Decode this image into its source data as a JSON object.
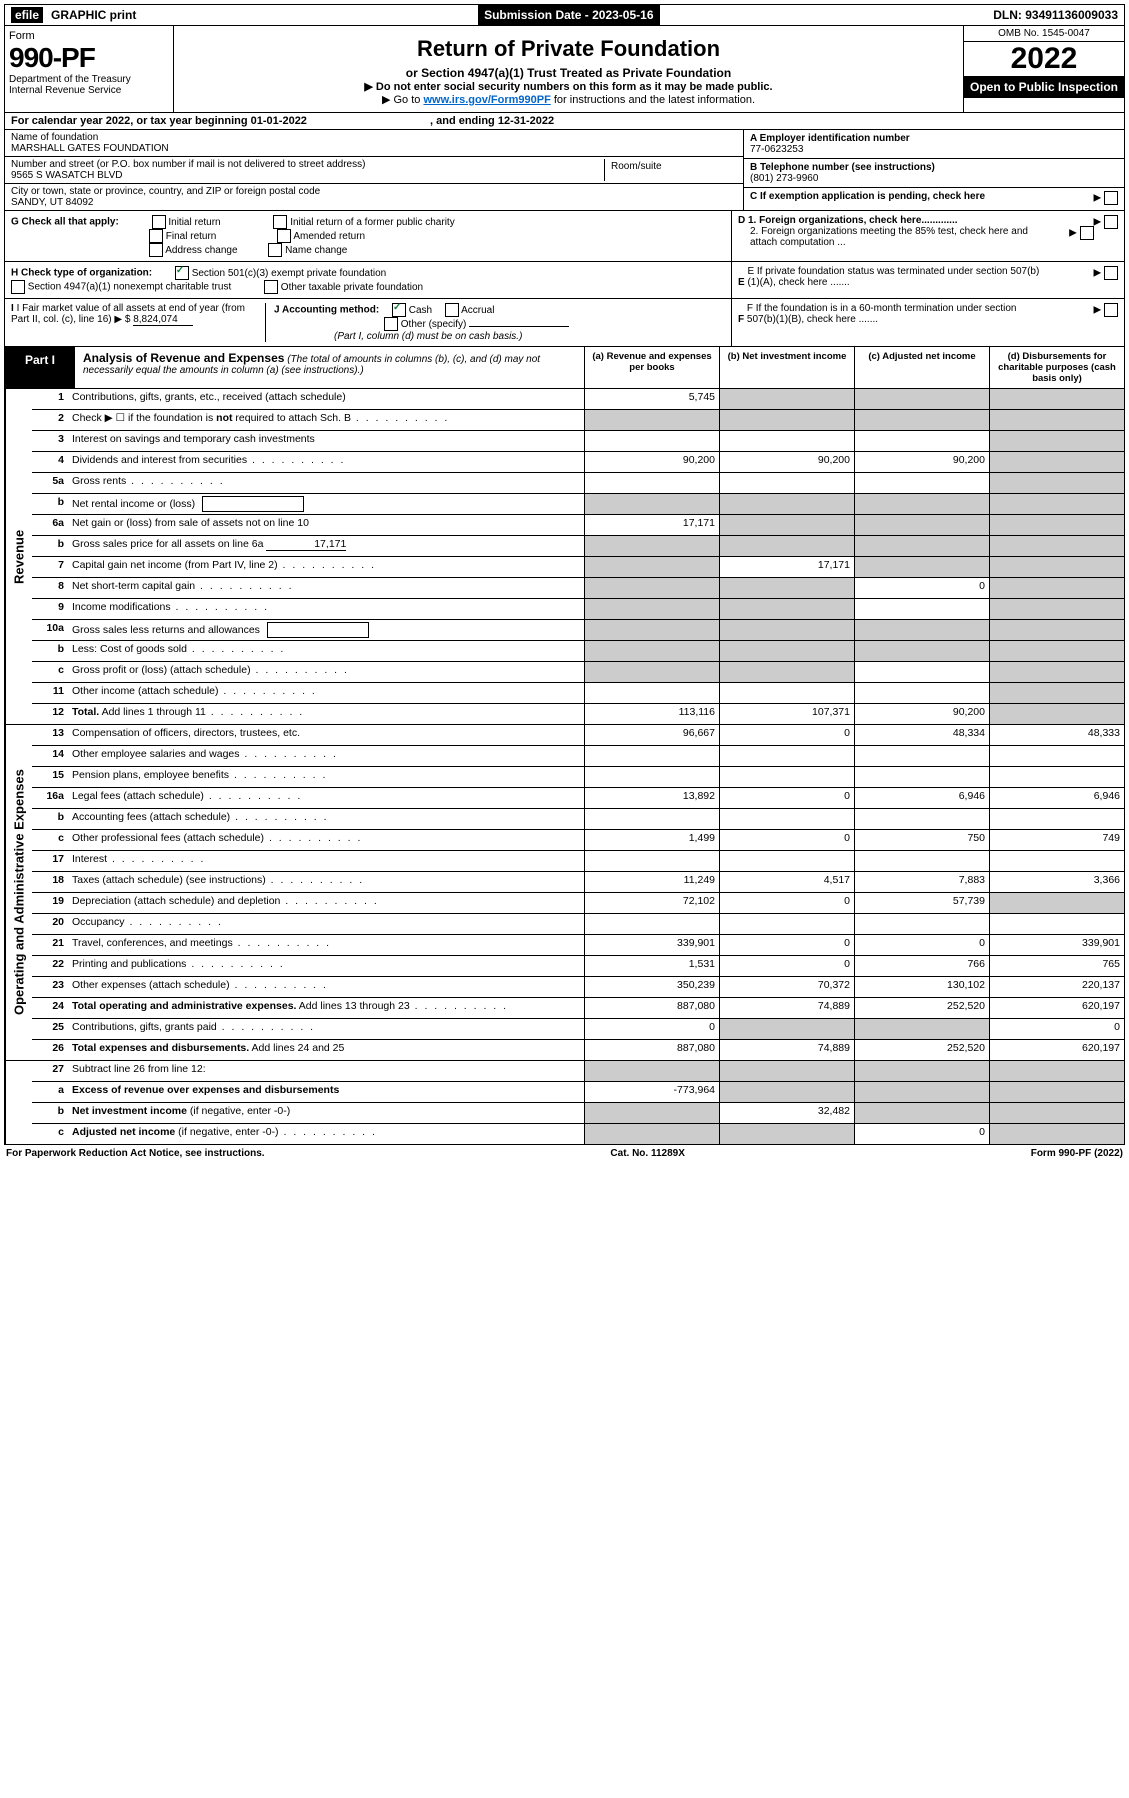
{
  "top": {
    "efile_prefix": "efile",
    "efile_label": "GRAPHIC print",
    "submission_label": "Submission Date - 2023-05-16",
    "dln": "DLN: 93491136009033"
  },
  "header": {
    "form_label": "Form",
    "form_number": "990-PF",
    "dept1": "Department of the Treasury",
    "dept2": "Internal Revenue Service",
    "title": "Return of Private Foundation",
    "subtitle": "or Section 4947(a)(1) Trust Treated as Private Foundation",
    "note1": "▶ Do not enter social security numbers on this form as it may be made public.",
    "note2_pre": "▶ Go to ",
    "note2_link": "www.irs.gov/Form990PF",
    "note2_post": " for instructions and the latest information.",
    "omb": "OMB No. 1545-0047",
    "year": "2022",
    "open_public": "Open to Public Inspection"
  },
  "cal": {
    "text_pre": "For calendar year 2022, or tax year beginning ",
    "begin": "01-01-2022",
    "mid": ", and ending ",
    "end": "12-31-2022"
  },
  "identity": {
    "name_label": "Name of foundation",
    "name": "MARSHALL GATES FOUNDATION",
    "addr_label": "Number and street (or P.O. box number if mail is not delivered to street address)",
    "addr": "9565 S WASATCH BLVD",
    "room_label": "Room/suite",
    "city_label": "City or town, state or province, country, and ZIP or foreign postal code",
    "city": "SANDY, UT  84092"
  },
  "right_box": {
    "a_label": "A Employer identification number",
    "a_val": "77-0623253",
    "b_label": "B Telephone number (see instructions)",
    "b_val": "(801) 273-9960",
    "c_label": "C If exemption application is pending, check here",
    "d1_label": "D 1. Foreign organizations, check here.............",
    "d2_label": "2. Foreign organizations meeting the 85% test, check here and attach computation ...",
    "e_label": "E If private foundation status was terminated under section 507(b)(1)(A), check here .......",
    "f_label": "F If the foundation is in a 60-month termination under section 507(b)(1)(B), check here .......",
    "arrow": "▶"
  },
  "checks": {
    "g_label": "G Check all that apply:",
    "g_opts": [
      "Initial return",
      "Final return",
      "Address change",
      "Initial return of a former public charity",
      "Amended return",
      "Name change"
    ],
    "h_label": "H Check type of organization:",
    "h_opt1": "Section 501(c)(3) exempt private foundation",
    "h_opt2": "Section 4947(a)(1) nonexempt charitable trust",
    "h_opt3": "Other taxable private foundation",
    "i_label": "I Fair market value of all assets at end of year (from Part II, col. (c), line 16)",
    "i_val": "8,824,074",
    "j_label": "J Accounting method:",
    "j_opt1": "Cash",
    "j_opt2": "Accrual",
    "j_other": "Other (specify)",
    "j_note": "(Part I, column (d) must be on cash basis.)"
  },
  "part1": {
    "label": "Part I",
    "title": "Analysis of Revenue and Expenses",
    "title_note": "(The total of amounts in columns (b), (c), and (d) may not necessarily equal the amounts in column (a) (see instructions).)",
    "col_a": "(a) Revenue and expenses per books",
    "col_b": "(b) Net investment income",
    "col_c": "(c) Adjusted net income",
    "col_d": "(d) Disbursements for charitable purposes (cash basis only)"
  },
  "sections": {
    "revenue": "Revenue",
    "expenses": "Operating and Administrative Expenses"
  },
  "lines": [
    {
      "n": "1",
      "d": "Contributions, gifts, grants, etc., received (attach schedule)",
      "a": "5,745",
      "b": "g",
      "c": "g",
      "dd": "g"
    },
    {
      "n": "2",
      "d": "Check ▶ ☐ if the foundation is <b>not</b> required to attach Sch. B",
      "dots": 1,
      "a": "g",
      "b": "g",
      "c": "g",
      "dd": "g"
    },
    {
      "n": "3",
      "d": "Interest on savings and temporary cash investments",
      "a": "",
      "b": "",
      "c": "",
      "dd": "g"
    },
    {
      "n": "4",
      "d": "Dividends and interest from securities",
      "dots": 1,
      "a": "90,200",
      "b": "90,200",
      "c": "90,200",
      "dd": "g"
    },
    {
      "n": "5a",
      "d": "Gross rents",
      "dots": 1,
      "a": "",
      "b": "",
      "c": "",
      "dd": "g"
    },
    {
      "n": "b",
      "d": "Net rental income or (loss) <span class='inline-box'></span>",
      "a": "g",
      "b": "g",
      "c": "g",
      "dd": "g"
    },
    {
      "n": "6a",
      "d": "Net gain or (loss) from sale of assets not on line 10",
      "a": "17,171",
      "b": "g",
      "c": "g",
      "dd": "g"
    },
    {
      "n": "b",
      "d": "Gross sales price for all assets on line 6a <span class='underline' style='min-width:80px;text-align:right'>17,171</span>",
      "a": "g",
      "b": "g",
      "c": "g",
      "dd": "g"
    },
    {
      "n": "7",
      "d": "Capital gain net income (from Part IV, line 2)",
      "dots": 1,
      "a": "g",
      "b": "17,171",
      "c": "g",
      "dd": "g"
    },
    {
      "n": "8",
      "d": "Net short-term capital gain",
      "dots": 1,
      "a": "g",
      "b": "g",
      "c": "0",
      "dd": "g"
    },
    {
      "n": "9",
      "d": "Income modifications",
      "dots": 1,
      "a": "g",
      "b": "g",
      "c": "",
      "dd": "g"
    },
    {
      "n": "10a",
      "d": "Gross sales less returns and allowances <span class='inline-box'></span>",
      "a": "g",
      "b": "g",
      "c": "g",
      "dd": "g"
    },
    {
      "n": "b",
      "d": "Less: Cost of goods sold",
      "dots": 1,
      "inline": 1,
      "a": "g",
      "b": "g",
      "c": "g",
      "dd": "g"
    },
    {
      "n": "c",
      "d": "Gross profit or (loss) (attach schedule)",
      "dots": 1,
      "a": "g",
      "b": "g",
      "c": "",
      "dd": "g"
    },
    {
      "n": "11",
      "d": "Other income (attach schedule)",
      "dots": 1,
      "a": "",
      "b": "",
      "c": "",
      "dd": "g"
    },
    {
      "n": "12",
      "d": "<b>Total.</b> Add lines 1 through 11",
      "dots": 1,
      "a": "113,116",
      "b": "107,371",
      "c": "90,200",
      "dd": "g"
    }
  ],
  "exp_lines": [
    {
      "n": "13",
      "d": "Compensation of officers, directors, trustees, etc.",
      "a": "96,667",
      "b": "0",
      "c": "48,334",
      "dd": "48,333"
    },
    {
      "n": "14",
      "d": "Other employee salaries and wages",
      "dots": 1,
      "a": "",
      "b": "",
      "c": "",
      "dd": ""
    },
    {
      "n": "15",
      "d": "Pension plans, employee benefits",
      "dots": 1,
      "a": "",
      "b": "",
      "c": "",
      "dd": ""
    },
    {
      "n": "16a",
      "d": "Legal fees (attach schedule)",
      "dots": 1,
      "a": "13,892",
      "b": "0",
      "c": "6,946",
      "dd": "6,946"
    },
    {
      "n": "b",
      "d": "Accounting fees (attach schedule)",
      "dots": 1,
      "a": "",
      "b": "",
      "c": "",
      "dd": ""
    },
    {
      "n": "c",
      "d": "Other professional fees (attach schedule)",
      "dots": 1,
      "a": "1,499",
      "b": "0",
      "c": "750",
      "dd": "749"
    },
    {
      "n": "17",
      "d": "Interest",
      "dots": 1,
      "a": "",
      "b": "",
      "c": "",
      "dd": ""
    },
    {
      "n": "18",
      "d": "Taxes (attach schedule) (see instructions)",
      "dots": 1,
      "a": "11,249",
      "b": "4,517",
      "c": "7,883",
      "dd": "3,366"
    },
    {
      "n": "19",
      "d": "Depreciation (attach schedule) and depletion",
      "dots": 1,
      "a": "72,102",
      "b": "0",
      "c": "57,739",
      "dd": "g"
    },
    {
      "n": "20",
      "d": "Occupancy",
      "dots": 1,
      "a": "",
      "b": "",
      "c": "",
      "dd": ""
    },
    {
      "n": "21",
      "d": "Travel, conferences, and meetings",
      "dots": 1,
      "a": "339,901",
      "b": "0",
      "c": "0",
      "dd": "339,901"
    },
    {
      "n": "22",
      "d": "Printing and publications",
      "dots": 1,
      "a": "1,531",
      "b": "0",
      "c": "766",
      "dd": "765"
    },
    {
      "n": "23",
      "d": "Other expenses (attach schedule)",
      "dots": 1,
      "a": "350,239",
      "b": "70,372",
      "c": "130,102",
      "dd": "220,137"
    },
    {
      "n": "24",
      "d": "<b>Total operating and administrative expenses.</b> Add lines 13 through 23",
      "dots": 1,
      "a": "887,080",
      "b": "74,889",
      "c": "252,520",
      "dd": "620,197"
    },
    {
      "n": "25",
      "d": "Contributions, gifts, grants paid",
      "dots": 1,
      "a": "0",
      "b": "g",
      "c": "g",
      "dd": "0"
    },
    {
      "n": "26",
      "d": "<b>Total expenses and disbursements.</b> Add lines 24 and 25",
      "a": "887,080",
      "b": "74,889",
      "c": "252,520",
      "dd": "620,197"
    }
  ],
  "bottom_lines": [
    {
      "n": "27",
      "d": "Subtract line 26 from line 12:",
      "a": "g",
      "b": "g",
      "c": "g",
      "dd": "g"
    },
    {
      "n": "a",
      "d": "<b>Excess of revenue over expenses and disbursements</b>",
      "a": "-773,964",
      "b": "g",
      "c": "g",
      "dd": "g"
    },
    {
      "n": "b",
      "d": "<b>Net investment income</b> (if negative, enter -0-)",
      "a": "g",
      "b": "32,482",
      "c": "g",
      "dd": "g"
    },
    {
      "n": "c",
      "d": "<b>Adjusted net income</b> (if negative, enter -0-)",
      "dots": 1,
      "a": "g",
      "b": "g",
      "c": "0",
      "dd": "g"
    }
  ],
  "footer": {
    "left": "For Paperwork Reduction Act Notice, see instructions.",
    "mid": "Cat. No. 11289X",
    "right": "Form 990-PF (2022)"
  }
}
